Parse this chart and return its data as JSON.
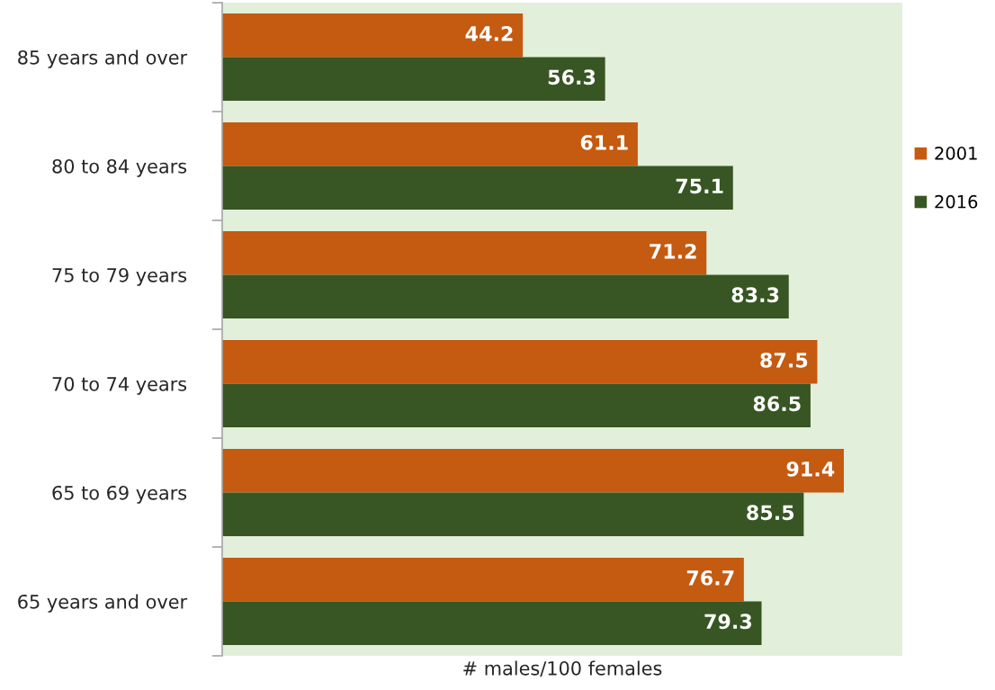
{
  "chart_data": {
    "type": "bar",
    "orientation": "horizontal",
    "categories": [
      "85 years and over",
      "80 to 84 years",
      "75 to 79 years",
      "70 to 74 years",
      "65 to 69 years",
      "65 years and over"
    ],
    "series": [
      {
        "name": "2001",
        "color": "#c55a11",
        "values": [
          44.2,
          61.1,
          71.2,
          87.5,
          91.4,
          76.7
        ]
      },
      {
        "name": "2016",
        "color": "#375623",
        "values": [
          56.3,
          75.1,
          83.3,
          86.5,
          85.5,
          79.3
        ]
      }
    ],
    "xlabel": "# males/100 females",
    "xlim": [
      0,
      100
    ],
    "tick_labels": "y",
    "data_labels": true,
    "legend": "right",
    "grid": false
  }
}
